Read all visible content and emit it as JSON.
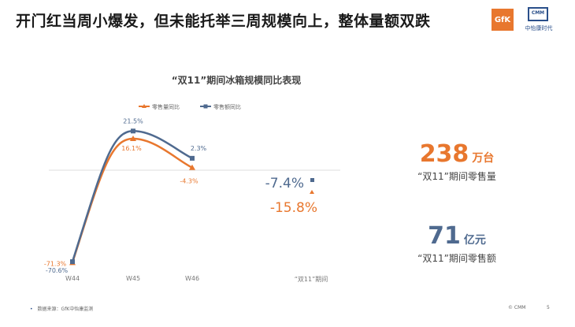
{
  "headline": "开门红当周小爆发，但未能托举三周规模向上，整体量额双跌",
  "logos": {
    "gfk": "GfK",
    "cmm_mark": "CMM",
    "cmm_sub": "中怡康时代"
  },
  "chart_data": {
    "type": "line",
    "title": "“双11”期间冰箱规模同比表现",
    "categories": [
      "W44",
      "W45",
      "W46"
    ],
    "ylim": [
      -75,
      25
    ],
    "legend_position": "top",
    "grid": false,
    "series": [
      {
        "name": "零售量同比",
        "color": "#e8772e",
        "marker": "triangle",
        "values": [
          -71.3,
          16.1,
          -4.3
        ],
        "labels": [
          "-71.3%",
          "16.1%",
          "-4.3%"
        ]
      },
      {
        "name": "零售额同比",
        "color": "#4f6a8f",
        "marker": "square",
        "values": [
          -70.6,
          21.5,
          2.3
        ],
        "labels": [
          "-70.6%",
          "21.5%",
          "2.3%"
        ]
      }
    ],
    "period": {
      "label": "“双11”期间",
      "volume_label": "-15.8%",
      "value_label": "-7.4%",
      "volume_value": -15.8,
      "value_value": -7.4
    }
  },
  "stats": {
    "volume": {
      "number": "238",
      "unit": "万台",
      "caption": "“双11”期间零售量"
    },
    "value": {
      "number": "71",
      "unit": "亿元",
      "caption": "“双11”期间零售额"
    }
  },
  "footer": {
    "source": "数据来源：GfK中怡康监测",
    "copyright": "© CMM",
    "page": "5"
  }
}
